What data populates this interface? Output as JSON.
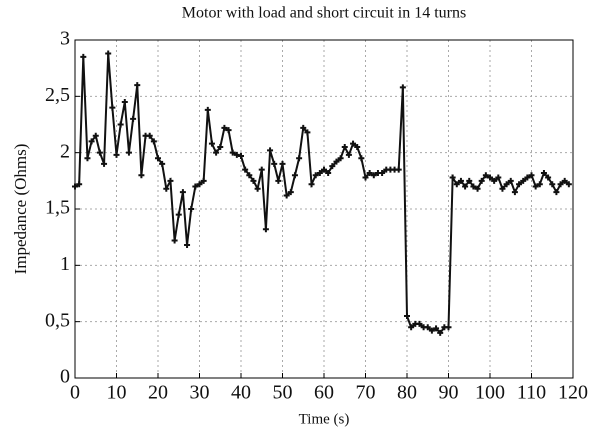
{
  "chart_data": {
    "type": "line",
    "title": "Motor with load and short circuit in 14 turns",
    "x_label": "Time (s)",
    "y_label": "Impedance (Ohms)",
    "x": [
      0,
      1,
      2,
      3,
      4,
      5,
      6,
      7,
      8,
      9,
      10,
      11,
      12,
      13,
      14,
      15,
      16,
      17,
      18,
      19,
      20,
      21,
      22,
      23,
      24,
      25,
      26,
      27,
      28,
      29,
      30,
      31,
      32,
      33,
      34,
      35,
      36,
      37,
      38,
      39,
      40,
      41,
      42,
      43,
      44,
      45,
      46,
      47,
      48,
      49,
      50,
      51,
      52,
      53,
      54,
      55,
      56,
      57,
      58,
      59,
      60,
      61,
      62,
      63,
      64,
      65,
      66,
      67,
      68,
      69,
      70,
      71,
      72,
      73,
      74,
      75,
      76,
      77,
      78,
      79,
      80,
      81,
      82,
      83,
      84,
      85,
      86,
      87,
      88,
      89,
      90,
      91,
      92,
      93,
      94,
      95,
      96,
      97,
      98,
      99,
      100,
      101,
      102,
      103,
      104,
      105,
      106,
      107,
      108,
      109,
      110,
      111,
      112,
      113,
      114,
      115,
      116,
      117,
      118,
      119
    ],
    "series": [
      {
        "name": "Impedance",
        "color": "#111111",
        "values": [
          1.7,
          1.72,
          2.85,
          1.95,
          2.1,
          2.15,
          2.0,
          1.9,
          2.88,
          2.4,
          1.98,
          2.25,
          2.45,
          2.0,
          2.3,
          2.6,
          1.8,
          2.15,
          2.15,
          2.1,
          1.95,
          1.9,
          1.68,
          1.75,
          1.22,
          1.45,
          1.65,
          1.18,
          1.5,
          1.7,
          1.72,
          1.75,
          2.38,
          2.08,
          2.0,
          2.05,
          2.22,
          2.2,
          2.0,
          1.98,
          1.97,
          1.85,
          1.8,
          1.75,
          1.68,
          1.85,
          1.32,
          2.02,
          1.9,
          1.75,
          1.9,
          1.62,
          1.65,
          1.8,
          1.95,
          2.22,
          2.18,
          1.72,
          1.8,
          1.82,
          1.85,
          1.82,
          1.88,
          1.92,
          1.95,
          2.05,
          1.98,
          2.08,
          2.05,
          1.95,
          1.78,
          1.82,
          1.8,
          1.82,
          1.82,
          1.85,
          1.85,
          1.85,
          1.85,
          2.58,
          0.55,
          0.45,
          0.48,
          0.48,
          0.45,
          0.45,
          0.42,
          0.44,
          0.4,
          0.45,
          0.45,
          1.78,
          1.72,
          1.75,
          1.7,
          1.75,
          1.7,
          1.68,
          1.75,
          1.8,
          1.78,
          1.75,
          1.78,
          1.68,
          1.72,
          1.75,
          1.65,
          1.72,
          1.75,
          1.78,
          1.8,
          1.7,
          1.72,
          1.82,
          1.78,
          1.72,
          1.65,
          1.72,
          1.75,
          1.72
        ]
      }
    ],
    "xlim": [
      0,
      120
    ],
    "xticks": [
      0,
      10,
      20,
      30,
      40,
      50,
      60,
      70,
      80,
      90,
      100,
      110,
      120
    ],
    "ylim": [
      0,
      3
    ],
    "yticks": [
      0,
      {
        "value": 0.5,
        "label": "0,5"
      },
      1,
      {
        "value": 1.5,
        "label": "1,5"
      },
      2,
      {
        "value": 2.5,
        "label": "2,5"
      },
      3
    ],
    "grid": true
  }
}
